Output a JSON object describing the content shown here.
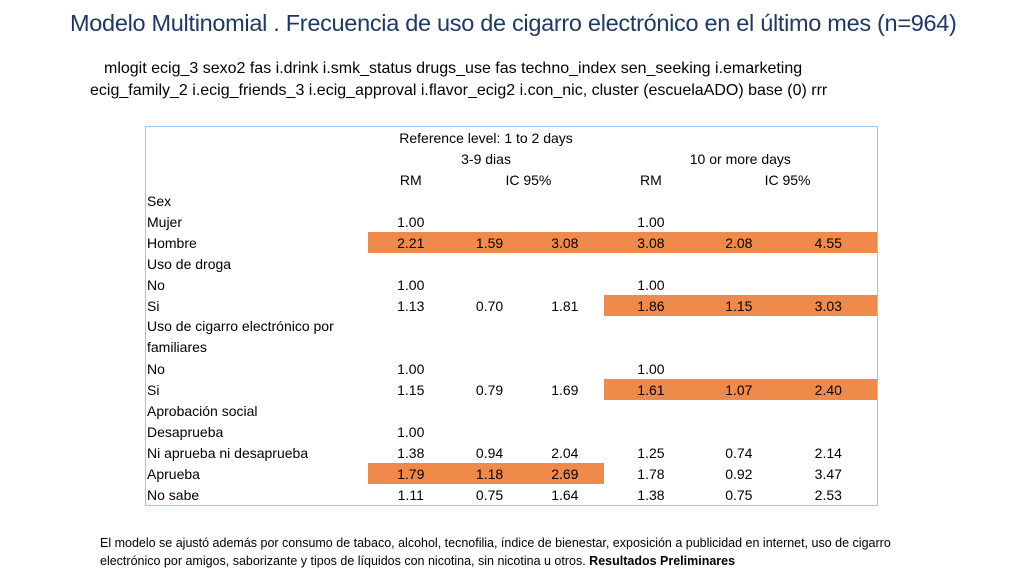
{
  "title": "Modelo Multinomial . Frecuencia de uso de cigarro electrónico en el último mes (n=964)",
  "command": {
    "line1": "mlogit ecig_3 sexo2 fas i.drink i.smk_status drugs_use fas techno_index sen_seeking i.emarketing",
    "line2": "ecig_family_2 i.ecig_friends_3 i.ecig_approval  i.flavor_ecig2 i.con_nic, cluster (escuelaADO) base (0) rrr"
  },
  "table": {
    "reference": "Reference level: 1 to 2 days",
    "group1": "3-9 dias",
    "group2": "10 or more days",
    "rm": "RM",
    "ic": "IC 95%",
    "rows": [
      {
        "label": "Sex",
        "v": [
          "",
          "",
          "",
          "",
          "",
          ""
        ],
        "hl": ""
      },
      {
        "label": "Mujer",
        "v": [
          "1.00",
          "",
          "",
          "1.00",
          "",
          ""
        ],
        "hl": ""
      },
      {
        "label": "Hombre",
        "v": [
          "2.21",
          "1.59",
          "3.08",
          "3.08",
          "2.08",
          "4.55"
        ],
        "hl": "both"
      },
      {
        "label": "Uso de droga",
        "v": [
          "",
          "",
          "",
          "",
          "",
          ""
        ],
        "hl": ""
      },
      {
        "label": "No",
        "v": [
          "1.00",
          "",
          "",
          "1.00",
          "",
          ""
        ],
        "hl": ""
      },
      {
        "label": "Si",
        "v": [
          "1.13",
          "0.70",
          "1.81",
          "1.86",
          "1.15",
          "3.03"
        ],
        "hl": "right"
      },
      {
        "label": "Uso de cigarro electrónico por familiares",
        "v": [
          "",
          "",
          "",
          "",
          "",
          ""
        ],
        "hl": ""
      },
      {
        "label": "No",
        "v": [
          "1.00",
          "",
          "",
          "1.00",
          "",
          ""
        ],
        "hl": ""
      },
      {
        "label": "Si",
        "v": [
          "1.15",
          "0.79",
          "1.69",
          "1.61",
          "1.07",
          "2.40"
        ],
        "hl": "right"
      },
      {
        "label": "Aprobación social",
        "v": [
          "",
          "",
          "",
          "",
          "",
          ""
        ],
        "hl": ""
      },
      {
        "label": "Desaprueba",
        "v": [
          "1.00",
          "",
          "",
          "",
          "",
          ""
        ],
        "hl": ""
      },
      {
        "label": "Ni aprueba ni desaprueba",
        "v": [
          "1.38",
          "0.94",
          "2.04",
          "1.25",
          "0.74",
          "2.14"
        ],
        "hl": ""
      },
      {
        "label": "Aprueba",
        "v": [
          "1.79",
          "1.18",
          "2.69",
          "1.78",
          "0.92",
          "3.47"
        ],
        "hl": "left"
      },
      {
        "label": "No sabe",
        "v": [
          "1.11",
          "0.75",
          "1.64",
          "1.38",
          "0.75",
          "2.53"
        ],
        "hl": ""
      }
    ]
  },
  "footnote": {
    "text": "El modelo se ajustó además  por consumo de tabaco, alcohol, tecnofilia, índice de bienestar, exposición a publicidad en internet, uso de cigarro electrónico por amigos, saborizante y tipos de líquidos con nicotina, sin nicotina u otros.  ",
    "bold": "Resultados Preliminares"
  },
  "colors": {
    "title": "#1f3864",
    "highlight": "#f08a4b",
    "border": "#9dc3e6"
  }
}
